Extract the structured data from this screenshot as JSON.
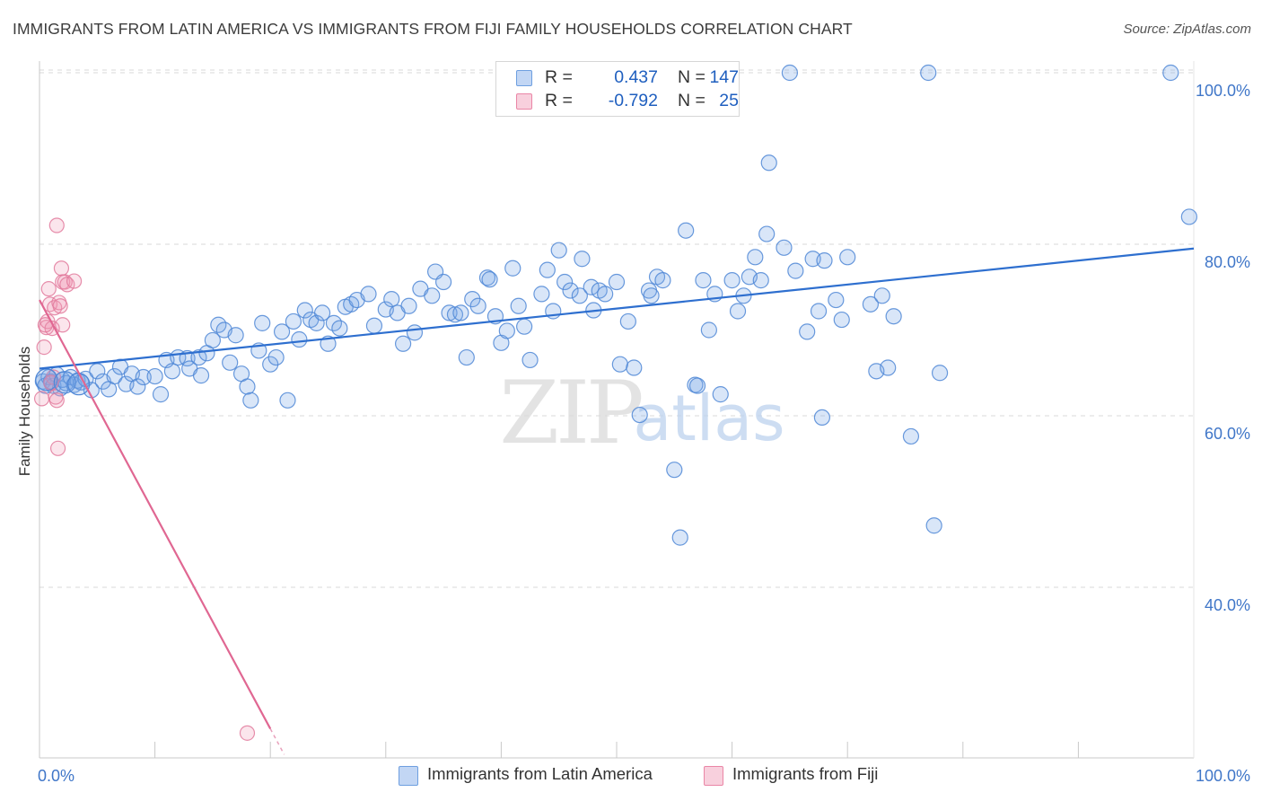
{
  "title": "IMMIGRANTS FROM LATIN AMERICA VS IMMIGRANTS FROM FIJI FAMILY HOUSEHOLDS CORRELATION CHART",
  "source": "Source: ZipAtlas.com",
  "watermark": {
    "zip": "ZIP",
    "atlas": "atlas"
  },
  "legend": {
    "r_label": "R =",
    "n_label": "N =",
    "rows": [
      {
        "r": "0.437",
        "n": "147",
        "color": "#6e9fe0"
      },
      {
        "r": "-0.792",
        "n": "25",
        "color": "#ea86a6"
      }
    ]
  },
  "bottom_legend": {
    "items": [
      {
        "label": "Immigrants from Latin America",
        "color": "#6e9fe0"
      },
      {
        "label": "Immigrants from Fiji",
        "color": "#ea86a6"
      }
    ]
  },
  "chart_data": {
    "type": "scatter",
    "title": "IMMIGRANTS FROM LATIN AMERICA VS IMMIGRANTS FROM FIJI FAMILY HOUSEHOLDS CORRELATION CHART",
    "xlabel": "",
    "ylabel": "Family Households",
    "xlim": [
      0,
      100
    ],
    "ylim": [
      21,
      104
    ],
    "x_tick_labels": [
      "0.0%",
      "100.0%"
    ],
    "y_ticks": [
      {
        "value": 40,
        "label": "40.0%"
      },
      {
        "value": 60,
        "label": "60.0%"
      },
      {
        "value": 80,
        "label": "80.0%"
      },
      {
        "value": 100,
        "label": "100.0%"
      }
    ],
    "grid": true,
    "series": [
      {
        "name": "Immigrants from Latin America",
        "color": "#6e9fe0",
        "trend": [
          [
            0,
            65.5
          ],
          [
            100,
            79.5
          ]
        ],
        "points": [
          [
            0.3,
            64
          ],
          [
            0.5,
            63.5
          ],
          [
            0.8,
            64.5
          ],
          [
            1,
            64
          ],
          [
            1.2,
            63.5
          ],
          [
            1.5,
            64.8
          ],
          [
            1.8,
            63.2
          ],
          [
            2,
            64.2
          ],
          [
            2.3,
            63.8
          ],
          [
            2.7,
            64.5
          ],
          [
            3,
            63.6
          ],
          [
            3.3,
            64.1
          ],
          [
            3.6,
            63.9
          ],
          [
            4,
            64.3
          ],
          [
            4.5,
            63
          ],
          [
            5,
            65.2
          ],
          [
            5.5,
            64
          ],
          [
            6,
            63.1
          ],
          [
            6.5,
            64.6
          ],
          [
            7,
            65.7
          ],
          [
            7.5,
            63.7
          ],
          [
            8,
            64.9
          ],
          [
            8.5,
            63.4
          ],
          [
            9,
            64.5
          ],
          [
            10,
            64.6
          ],
          [
            10.5,
            62.5
          ],
          [
            11,
            66.5
          ],
          [
            11.5,
            65.2
          ],
          [
            12,
            66.8
          ],
          [
            12.8,
            66.7
          ],
          [
            13,
            65.5
          ],
          [
            13.8,
            66.8
          ],
          [
            14,
            64.7
          ],
          [
            14.5,
            67.3
          ],
          [
            15,
            68.8
          ],
          [
            15.5,
            70.6
          ],
          [
            16,
            70
          ],
          [
            16.5,
            66.2
          ],
          [
            17,
            69.4
          ],
          [
            17.5,
            64.9
          ],
          [
            18,
            63.4
          ],
          [
            18.3,
            61.8
          ],
          [
            19,
            67.6
          ],
          [
            19.3,
            70.8
          ],
          [
            20,
            66
          ],
          [
            20.5,
            66.8
          ],
          [
            21,
            69.8
          ],
          [
            21.5,
            61.8
          ],
          [
            22,
            71
          ],
          [
            22.5,
            68.9
          ],
          [
            23,
            72.3
          ],
          [
            23.5,
            71.2
          ],
          [
            24,
            70.8
          ],
          [
            24.5,
            72
          ],
          [
            25,
            68.4
          ],
          [
            25.5,
            70.8
          ],
          [
            26,
            70.2
          ],
          [
            26.5,
            72.7
          ],
          [
            27,
            73
          ],
          [
            27.5,
            73.5
          ],
          [
            28.5,
            74.2
          ],
          [
            29,
            70.5
          ],
          [
            30,
            72.4
          ],
          [
            30.5,
            73.6
          ],
          [
            31,
            72
          ],
          [
            31.5,
            68.4
          ],
          [
            32,
            72.8
          ],
          [
            32.5,
            69.7
          ],
          [
            33,
            74.8
          ],
          [
            34,
            74
          ],
          [
            34.3,
            76.8
          ],
          [
            35,
            75.6
          ],
          [
            35.5,
            72
          ],
          [
            36,
            71.8
          ],
          [
            36.5,
            72
          ],
          [
            37,
            66.8
          ],
          [
            37.5,
            73.6
          ],
          [
            38,
            72.8
          ],
          [
            38.8,
            76.1
          ],
          [
            39,
            75.9
          ],
          [
            39.5,
            71.6
          ],
          [
            40,
            68.5
          ],
          [
            40.5,
            69.9
          ],
          [
            41,
            77.2
          ],
          [
            41.5,
            72.8
          ],
          [
            42,
            70.4
          ],
          [
            42.5,
            66.5
          ],
          [
            43.5,
            74.2
          ],
          [
            44,
            77
          ],
          [
            44.5,
            72.2
          ],
          [
            45,
            79.3
          ],
          [
            45.5,
            75.6
          ],
          [
            46,
            74.6
          ],
          [
            46.8,
            74
          ],
          [
            47,
            78.3
          ],
          [
            47.8,
            75
          ],
          [
            48,
            72.3
          ],
          [
            48.5,
            74.6
          ],
          [
            49,
            74.2
          ],
          [
            50,
            75.6
          ],
          [
            50.3,
            66
          ],
          [
            51,
            71
          ],
          [
            51.5,
            65.6
          ],
          [
            52,
            60.1
          ],
          [
            52.8,
            74.6
          ],
          [
            53,
            74
          ],
          [
            53.5,
            76.2
          ],
          [
            54,
            75.8
          ],
          [
            55,
            53.7
          ],
          [
            55.5,
            45.8
          ],
          [
            56,
            81.6
          ],
          [
            56.8,
            63.6
          ],
          [
            57,
            63.5
          ],
          [
            57.5,
            75.8
          ],
          [
            58,
            70
          ],
          [
            58.5,
            74.2
          ],
          [
            59,
            62.5
          ],
          [
            60,
            75.8
          ],
          [
            60.5,
            72.2
          ],
          [
            61,
            74
          ],
          [
            61.5,
            76.2
          ],
          [
            62,
            78.5
          ],
          [
            62.5,
            75.8
          ],
          [
            63,
            81.2
          ],
          [
            63.2,
            89.5
          ],
          [
            64.5,
            79.6
          ],
          [
            65,
            100
          ],
          [
            65.5,
            76.9
          ],
          [
            66.5,
            69.8
          ],
          [
            67,
            78.3
          ],
          [
            67.5,
            72.2
          ],
          [
            67.8,
            59.8
          ],
          [
            68,
            78.1
          ],
          [
            69,
            73.5
          ],
          [
            69.5,
            71.2
          ],
          [
            70,
            78.5
          ],
          [
            72,
            73
          ],
          [
            72.5,
            65.2
          ],
          [
            73,
            74
          ],
          [
            73.5,
            65.6
          ],
          [
            74,
            71.6
          ],
          [
            75.5,
            57.6
          ],
          [
            77,
            100
          ],
          [
            77.5,
            47.2
          ],
          [
            78,
            65
          ],
          [
            98,
            100
          ],
          [
            99.6,
            83.2
          ]
        ]
      },
      {
        "name": "Immigrants from Fiji",
        "color": "#ea86a6",
        "trend": [
          [
            0,
            73.5
          ],
          [
            20,
            23.5
          ]
        ],
        "points": [
          [
            0.2,
            62
          ],
          [
            0.4,
            68
          ],
          [
            0.6,
            70.3
          ],
          [
            0.7,
            71
          ],
          [
            0.8,
            74.8
          ],
          [
            0.9,
            73
          ],
          [
            1,
            63.8
          ],
          [
            1.1,
            70.2
          ],
          [
            1.2,
            64.5
          ],
          [
            1.3,
            72.6
          ],
          [
            1.4,
            62.2
          ],
          [
            1.5,
            61.8
          ],
          [
            1.5,
            82.2
          ],
          [
            1.6,
            56.2
          ],
          [
            1.7,
            73.2
          ],
          [
            1.8,
            72.8
          ],
          [
            1.9,
            77.2
          ],
          [
            2,
            75.6
          ],
          [
            2,
            70.6
          ],
          [
            2.2,
            75.6
          ],
          [
            2.4,
            75.3
          ],
          [
            3,
            75.7
          ],
          [
            1.0,
            63.9
          ],
          [
            0.5,
            70.6
          ],
          [
            18,
            23
          ]
        ]
      }
    ]
  }
}
